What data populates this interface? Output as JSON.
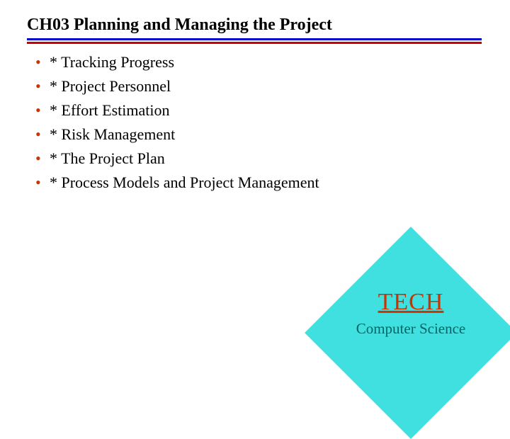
{
  "title": "CH03 Planning and Managing the Project",
  "divider": {
    "top_color": "#0000cc",
    "bottom_color": "#cc0000"
  },
  "bullet_color": "#cc3300",
  "items": [
    "* Tracking Progress",
    "* Project Personnel",
    "* Effort Estimation",
    "* Risk Management",
    "* The Project Plan",
    "* Process Models and Project Management"
  ],
  "diamond": {
    "fill": "#40e0e0",
    "tech_label": "TECH ",
    "tech_color": "#cc3300",
    "subtitle": "Computer Science",
    "subtitle_color": "#006666"
  }
}
